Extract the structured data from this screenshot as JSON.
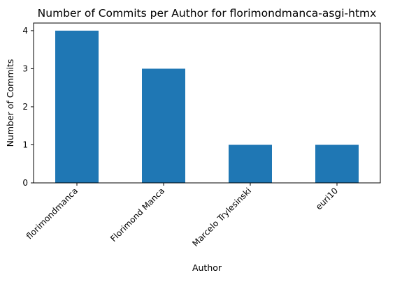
{
  "chart_data": {
    "type": "bar",
    "title": "Number of Commits per Author for florimondmanca-asgi-htmx",
    "xlabel": "Author",
    "ylabel": "Number of Commits",
    "categories": [
      "florimondmanca",
      "Florimond Manca",
      "Marcelo Trylesinski",
      "euri10"
    ],
    "values": [
      4,
      3,
      1,
      1
    ],
    "ylim": [
      0,
      4.2
    ],
    "yticks": [
      0,
      1,
      2,
      3,
      4
    ],
    "bar_color": "#1f77b4",
    "grid": false,
    "legend": "none"
  }
}
